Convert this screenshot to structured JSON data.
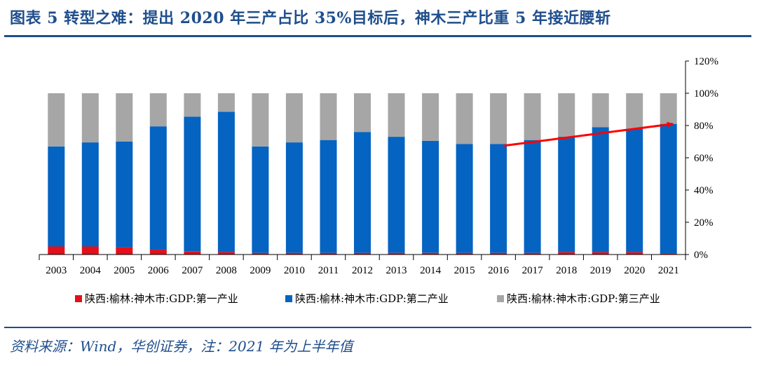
{
  "header": {
    "title": "图表 5   转型之难：提出 2020 年三产占比 35%目标后，神木三产比重 5 年接近腰斩"
  },
  "footer": {
    "source": "资料来源：Wind，华创证券，注：2021 年为上半年值"
  },
  "colors": {
    "primary": "#e3101a",
    "secondary": "#0563c1",
    "tertiary": "#a6a6a6",
    "arrow": "#ff0000",
    "brand": "#1f4e8c"
  },
  "chart_data": {
    "type": "bar",
    "stacked": true,
    "title": "",
    "xlabel": "",
    "ylabel": "",
    "ylim": [
      0,
      120
    ],
    "y_axis_side": "right",
    "y_ticks": [
      "0%",
      "20%",
      "40%",
      "60%",
      "80%",
      "100%",
      "120%"
    ],
    "legend_position": "bottom",
    "categories": [
      "2003",
      "2004",
      "2005",
      "2006",
      "2007",
      "2008",
      "2009",
      "2010",
      "2011",
      "2012",
      "2013",
      "2014",
      "2015",
      "2016",
      "2017",
      "2018",
      "2019",
      "2020",
      "2021"
    ],
    "series": [
      {
        "name": "陕西:榆林:神木市:GDP:第一产业",
        "color": "#e3101a",
        "values": [
          5,
          5,
          4.5,
          3,
          2,
          1.5,
          1,
          1,
          1,
          1,
          1,
          1,
          1,
          1,
          1,
          1.5,
          1.5,
          1.5,
          0.5
        ]
      },
      {
        "name": "陕西:榆林:神木市:GDP:第二产业",
        "color": "#0563c1",
        "values": [
          62,
          64.5,
          65.5,
          76.5,
          83.5,
          87,
          66,
          68.5,
          70,
          75,
          72,
          69.5,
          67.5,
          67.5,
          70,
          71.5,
          77.5,
          76.5,
          80.5
        ]
      },
      {
        "name": "陕西:榆林:神木市:GDP:第三产业",
        "color": "#a6a6a6",
        "values": [
          33,
          30.5,
          30,
          20.5,
          14.5,
          11.5,
          33,
          30.5,
          29,
          24,
          27,
          29.5,
          31.5,
          31.5,
          29,
          27,
          21,
          22,
          19
        ]
      }
    ],
    "annotations": [
      {
        "type": "arrow",
        "from": {
          "x": "2016",
          "y": 67.5
        },
        "to": {
          "x": "2021",
          "y": 81
        }
      }
    ]
  }
}
